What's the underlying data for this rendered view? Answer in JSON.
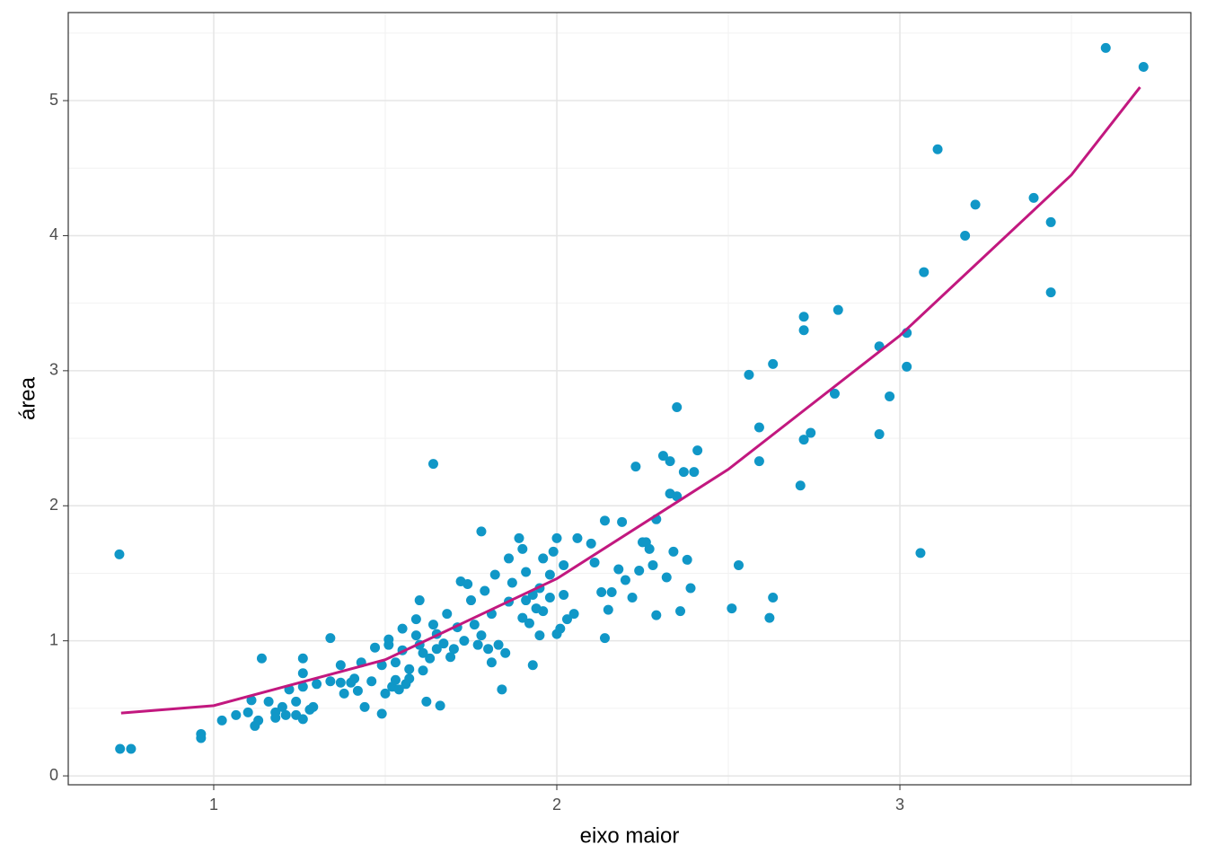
{
  "chart_data": {
    "type": "scatter",
    "xlabel": "eixo maior",
    "ylabel": "área",
    "xlim": [
      0.576,
      3.848
    ],
    "ylim": [
      -0.066,
      5.652
    ],
    "xticks": [
      1,
      2,
      3
    ],
    "yticks": [
      0,
      1,
      2,
      3,
      4,
      5
    ],
    "x_minor_grid": [
      1.5,
      2.5,
      3.5
    ],
    "y_minor_grid": [
      0.5,
      1.5,
      2.5,
      3.5,
      4.5,
      5.5
    ],
    "grid": true,
    "points": {
      "color": "#1097c7",
      "x": [
        0.725,
        0.727,
        0.759,
        0.963,
        0.963,
        1.024,
        1.065,
        1.1,
        1.11,
        1.12,
        1.13,
        1.14,
        1.16,
        1.18,
        1.18,
        1.2,
        1.21,
        1.22,
        1.24,
        1.24,
        1.26,
        1.26,
        1.26,
        1.26,
        1.28,
        1.29,
        1.3,
        1.34,
        1.34,
        1.37,
        1.37,
        1.38,
        1.4,
        1.41,
        1.42,
        1.43,
        1.44,
        1.46,
        1.47,
        1.49,
        1.49,
        1.5,
        1.51,
        1.51,
        1.52,
        1.53,
        1.53,
        1.54,
        1.55,
        1.55,
        1.56,
        1.57,
        1.57,
        1.59,
        1.59,
        1.6,
        1.61,
        1.6,
        1.61,
        1.62,
        1.63,
        1.64,
        1.64,
        1.65,
        1.65,
        1.66,
        1.67,
        1.68,
        1.69,
        1.7,
        1.71,
        1.72,
        1.73,
        1.74,
        1.75,
        1.76,
        1.77,
        1.78,
        1.78,
        1.79,
        1.8,
        1.81,
        1.81,
        1.82,
        1.83,
        1.84,
        1.85,
        1.86,
        1.86,
        1.87,
        1.89,
        1.9,
        1.9,
        1.91,
        1.91,
        1.92,
        1.93,
        1.93,
        1.94,
        1.95,
        1.95,
        1.96,
        1.96,
        1.98,
        1.98,
        1.99,
        2.0,
        2.0,
        2.01,
        2.02,
        2.02,
        2.03,
        2.05,
        2.06,
        2.1,
        2.11,
        2.13,
        2.14,
        2.14,
        2.15,
        2.16,
        2.18,
        2.19,
        2.2,
        2.22,
        2.23,
        2.24,
        2.25,
        2.26,
        2.27,
        2.28,
        2.29,
        2.29,
        2.31,
        2.32,
        2.33,
        2.33,
        2.34,
        2.35,
        2.35,
        2.36,
        2.37,
        2.38,
        2.39,
        2.4,
        2.41,
        2.51,
        2.53,
        2.56,
        2.59,
        2.59,
        2.62,
        2.63,
        2.63,
        2.71,
        2.72,
        2.72,
        2.72,
        2.74,
        2.81,
        2.82,
        2.94,
        2.94,
        2.97,
        3.02,
        3.02,
        3.06,
        3.07,
        3.11,
        3.19,
        3.22,
        3.39,
        3.44,
        3.44,
        3.6,
        3.71
      ],
      "y": [
        1.64,
        0.2,
        0.2,
        0.31,
        0.28,
        0.41,
        0.45,
        0.47,
        0.56,
        0.37,
        0.41,
        0.87,
        0.55,
        0.47,
        0.43,
        0.51,
        0.45,
        0.64,
        0.55,
        0.45,
        0.87,
        0.76,
        0.66,
        0.42,
        0.49,
        0.51,
        0.68,
        1.02,
        0.7,
        0.69,
        0.82,
        0.61,
        0.69,
        0.72,
        0.63,
        0.84,
        0.51,
        0.7,
        0.95,
        0.46,
        0.82,
        0.61,
        0.97,
        1.01,
        0.66,
        0.84,
        0.71,
        0.64,
        0.93,
        1.09,
        0.68,
        0.79,
        0.72,
        1.16,
        1.04,
        0.97,
        0.78,
        1.3,
        0.91,
        0.55,
        0.87,
        1.12,
        2.31,
        0.94,
        1.05,
        0.52,
        0.98,
        1.2,
        0.88,
        0.94,
        1.1,
        1.44,
        1.0,
        1.42,
        1.3,
        1.12,
        0.97,
        1.04,
        1.81,
        1.37,
        0.94,
        1.2,
        0.84,
        1.49,
        0.97,
        0.64,
        0.91,
        1.29,
        1.61,
        1.43,
        1.76,
        1.17,
        1.68,
        1.3,
        1.51,
        1.13,
        1.34,
        0.82,
        1.24,
        1.04,
        1.39,
        1.61,
        1.22,
        1.32,
        1.49,
        1.66,
        1.05,
        1.76,
        1.09,
        1.56,
        1.34,
        1.16,
        1.2,
        1.76,
        1.72,
        1.58,
        1.36,
        1.02,
        1.89,
        1.23,
        1.36,
        1.53,
        1.88,
        1.45,
        1.32,
        2.29,
        1.52,
        1.73,
        1.73,
        1.68,
        1.56,
        1.9,
        1.19,
        2.37,
        1.47,
        2.33,
        2.09,
        1.66,
        2.07,
        2.73,
        1.22,
        2.25,
        1.6,
        1.39,
        2.25,
        2.41,
        1.24,
        1.56,
        2.97,
        2.33,
        2.58,
        1.17,
        3.05,
        1.32,
        2.15,
        3.3,
        3.4,
        2.49,
        2.54,
        2.83,
        3.45,
        3.18,
        2.53,
        2.81,
        3.28,
        3.03,
        1.65,
        3.73,
        4.64,
        4.0,
        4.23,
        4.28,
        4.1,
        3.58,
        5.39,
        5.25
      ]
    },
    "fit_line": {
      "color": "#c2187f",
      "x": [
        0.73,
        1.0,
        1.5,
        2.0,
        2.5,
        3.0,
        3.5,
        3.7
      ],
      "y": [
        0.465,
        0.52,
        0.86,
        1.46,
        2.27,
        3.26,
        4.45,
        5.1
      ]
    }
  }
}
